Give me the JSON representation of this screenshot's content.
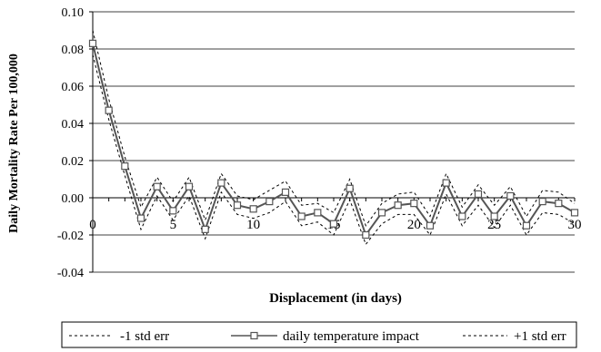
{
  "chart_data": {
    "type": "line",
    "xlabel": "Displacement (in days)",
    "ylabel": "Daily Mortality Rate Per 100,000",
    "xlim": [
      0,
      30
    ],
    "ylim": [
      -0.04,
      0.1
    ],
    "x_ticks": [
      0,
      5,
      10,
      15,
      20,
      25,
      30
    ],
    "x_tick_labels": [
      "0",
      "5",
      "10",
      "15",
      "20",
      "25",
      "30"
    ],
    "y_ticks": [
      -0.04,
      -0.02,
      0.0,
      0.02,
      0.04,
      0.06,
      0.08,
      0.1
    ],
    "y_tick_labels": [
      "-0.04",
      "-0.02",
      "0.00",
      "0.02",
      "0.04",
      "0.06",
      "0.08",
      "0.10"
    ],
    "grid": "horizontal",
    "legend_position": "bottom",
    "x": [
      0,
      1,
      2,
      3,
      4,
      5,
      6,
      7,
      8,
      9,
      10,
      11,
      12,
      13,
      14,
      15,
      16,
      17,
      18,
      19,
      20,
      21,
      22,
      23,
      24,
      25,
      26,
      27,
      28,
      29,
      30
    ],
    "series": [
      {
        "name": "-1 std err",
        "style": "dashed",
        "color": "#000000",
        "values": [
          0.077,
          0.042,
          0.012,
          -0.017,
          0.001,
          -0.012,
          0.001,
          -0.022,
          0.003,
          -0.009,
          -0.011,
          -0.008,
          -0.002,
          -0.015,
          -0.013,
          -0.02,
          -0.001,
          -0.025,
          -0.014,
          -0.009,
          -0.009,
          -0.02,
          0.002,
          -0.015,
          -0.004,
          -0.016,
          -0.004,
          -0.02,
          -0.008,
          -0.009,
          -0.014
        ]
      },
      {
        "name": "daily temperature impact",
        "style": "solid-square-markers",
        "color": "#555555",
        "values": [
          0.083,
          0.047,
          0.017,
          -0.011,
          0.006,
          -0.007,
          0.006,
          -0.017,
          0.008,
          -0.004,
          -0.006,
          -0.002,
          0.003,
          -0.01,
          -0.008,
          -0.014,
          0.005,
          -0.02,
          -0.008,
          -0.004,
          -0.003,
          -0.015,
          0.008,
          -0.01,
          0.002,
          -0.01,
          0.001,
          -0.015,
          -0.002,
          -0.003,
          -0.008
        ]
      },
      {
        "name": "+1 std err",
        "style": "dashed",
        "color": "#000000",
        "values": [
          0.09,
          0.053,
          0.022,
          -0.005,
          0.011,
          -0.002,
          0.011,
          -0.012,
          0.013,
          0.001,
          -0.001,
          0.004,
          0.009,
          -0.004,
          -0.003,
          -0.008,
          0.01,
          -0.015,
          -0.003,
          0.002,
          0.003,
          -0.01,
          0.013,
          -0.005,
          0.007,
          -0.004,
          0.006,
          -0.01,
          0.004,
          0.003,
          -0.003
        ]
      }
    ]
  }
}
